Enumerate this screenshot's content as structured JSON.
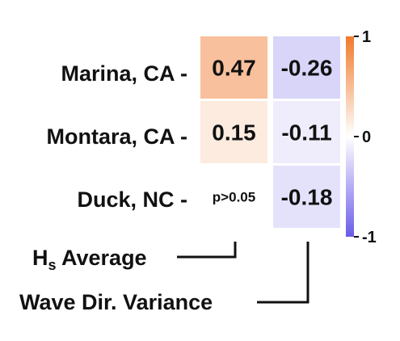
{
  "chart_data": {
    "type": "heatmap",
    "rows": [
      "Marina, CA -",
      "Montara, CA -",
      "Duck, NC -"
    ],
    "columns": [
      "H",
      "Wave Dir. Variance"
    ],
    "column_label_first": {
      "main": "H",
      "subscript": "s",
      "rest": " Average"
    },
    "values": [
      [
        0.47,
        -0.26
      ],
      [
        0.15,
        -0.11
      ],
      [
        null,
        -0.18
      ]
    ],
    "cell_labels": [
      [
        "0.47",
        "-0.26"
      ],
      [
        "0.15",
        "-0.11"
      ],
      [
        "p>0.05",
        "-0.18"
      ]
    ],
    "colorbar": {
      "min": -1,
      "max": 1,
      "ticks": [
        {
          "value": 1,
          "label": "1"
        },
        {
          "value": 0,
          "label": "0"
        },
        {
          "value": -1,
          "label": "-1"
        }
      ],
      "colors": {
        "positive": "#f07a2c",
        "zero": "#ffffff",
        "negative": "#6a5ce8"
      }
    }
  }
}
